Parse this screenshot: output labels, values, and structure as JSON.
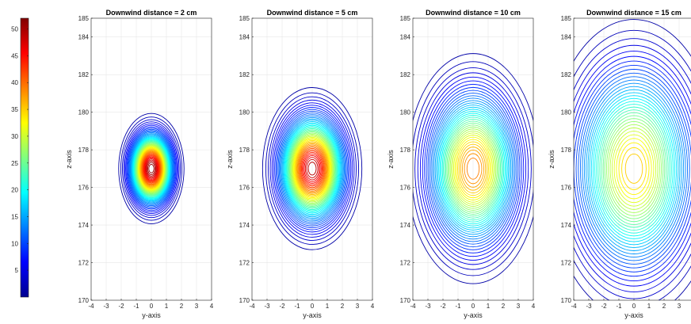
{
  "chart_data": {
    "type": "contour",
    "colorbar": {
      "colormap": "jet",
      "range": [
        0,
        52
      ],
      "ticks": [
        5,
        10,
        15,
        20,
        25,
        30,
        35,
        40,
        45,
        50
      ],
      "tick_labels": [
        "5",
        "10",
        "15",
        "20",
        "25",
        "30",
        "35",
        "40",
        "45",
        "50"
      ]
    },
    "panels": [
      {
        "title": "Downwind distance = 2 cm",
        "xlabel": "y-axis",
        "ylabel": "z-axis",
        "xlim": [
          -4,
          4
        ],
        "ylim": [
          170,
          185
        ],
        "xticks": [
          -4,
          -3,
          -2,
          -1,
          0,
          1,
          2,
          3,
          4
        ],
        "yticks": [
          170,
          172,
          174,
          176,
          178,
          180,
          182,
          184,
          185
        ],
        "grid": true,
        "center": [
          0,
          177
        ],
        "peak": 52,
        "spread": [
          0.85,
          1.15
        ]
      },
      {
        "title": "Downwind distance = 5 cm",
        "xlabel": "y-axis",
        "ylabel": "z-axis",
        "xlim": [
          -4,
          4
        ],
        "ylim": [
          170,
          185
        ],
        "xticks": [
          -4,
          -3,
          -2,
          -1,
          0,
          1,
          2,
          3,
          4
        ],
        "yticks": [
          170,
          172,
          174,
          176,
          178,
          180,
          182,
          184,
          185
        ],
        "grid": true,
        "center": [
          0,
          177
        ],
        "peak": 50,
        "spread": [
          1.3,
          1.7
        ]
      },
      {
        "title": "Downwind distance = 10 cm",
        "xlabel": "y-axis",
        "ylabel": "z-axis",
        "xlim": [
          -4,
          4
        ],
        "ylim": [
          170,
          185
        ],
        "xticks": [
          -4,
          -3,
          -2,
          -1,
          0,
          1,
          2,
          3,
          4
        ],
        "yticks": [
          170,
          172,
          174,
          176,
          178,
          180,
          182,
          184,
          185
        ],
        "grid": true,
        "center": [
          0,
          177
        ],
        "peak": 40,
        "spread": [
          1.8,
          2.5
        ]
      },
      {
        "title": "Downwind distance = 15 cm",
        "xlabel": "y-axis",
        "ylabel": "z-axis",
        "xlim": [
          -4,
          4
        ],
        "ylim": [
          170,
          185
        ],
        "xticks": [
          -4,
          -3,
          -2,
          -1,
          0,
          1,
          2,
          3,
          4
        ],
        "yticks": [
          170,
          172,
          174,
          176,
          178,
          180,
          182,
          184,
          185
        ],
        "grid": true,
        "center": [
          0,
          177
        ],
        "peak": 36,
        "spread": [
          2.4,
          3.3
        ]
      }
    ]
  }
}
